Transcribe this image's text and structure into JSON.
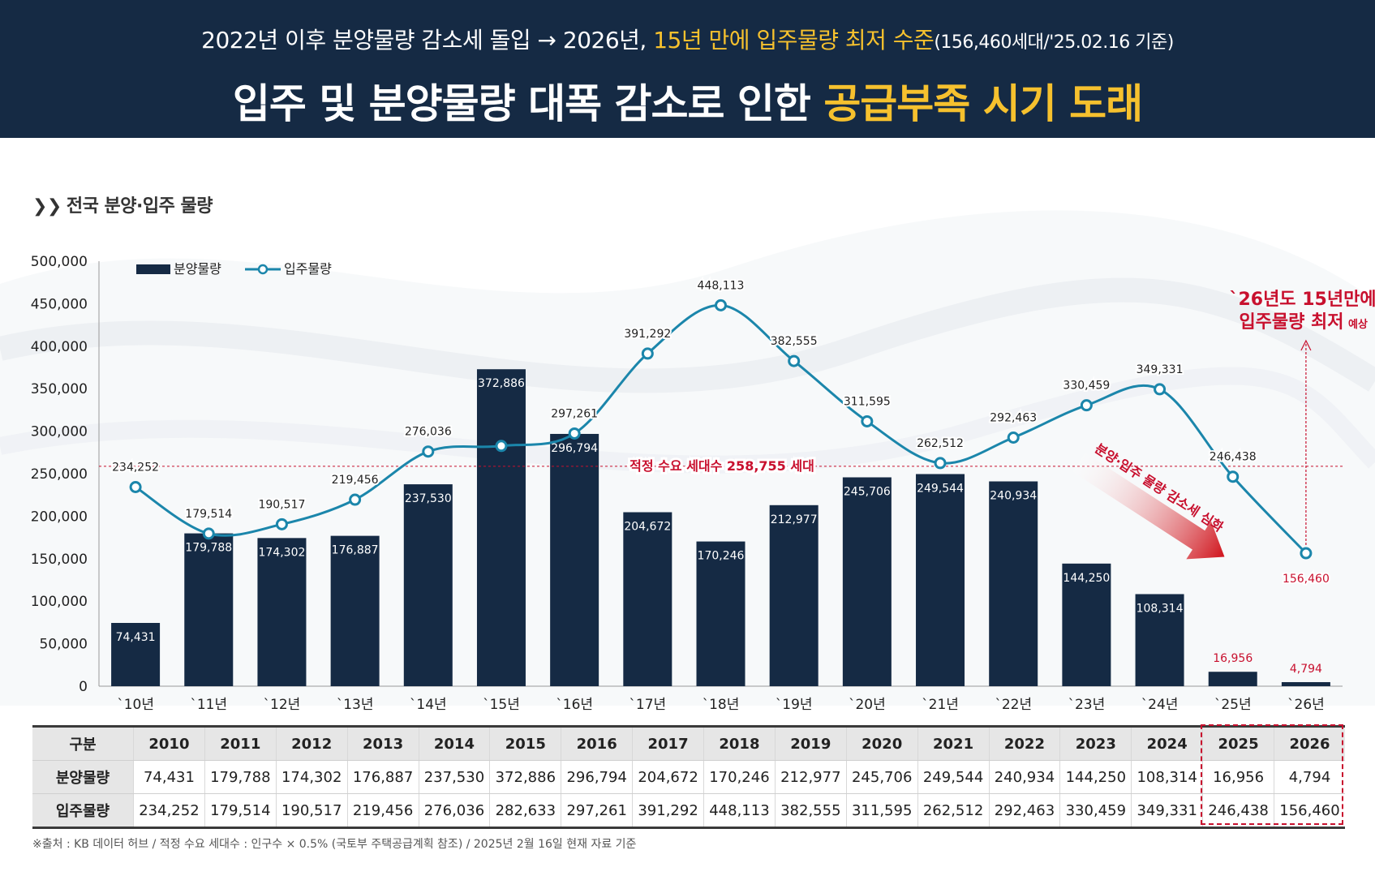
{
  "header": {
    "subtitle_part1": "2022년 이후 분양물량 감소세 돌입 → 2026년, ",
    "subtitle_highlight": "15년 만에 입주물량 최저 수준",
    "subtitle_note": "(156,460세대/'25.02.16 기준)",
    "title_part1": "입주 및 분양물량 대폭 감소로 인한 ",
    "title_highlight": "공급부족 시기 도래"
  },
  "section_title": "전국 분양·입주 물량",
  "colors": {
    "header_bg": "#152a44",
    "highlight": "#f6c12e",
    "bar": "#152a44",
    "line": "#1b86ab",
    "accent_red": "#c8102e"
  },
  "chart_data": {
    "type": "bar",
    "categories": [
      "`10년",
      "`11년",
      "`12년",
      "`13년",
      "`14년",
      "`15년",
      "`16년",
      "`17년",
      "`18년",
      "`19년",
      "`20년",
      "`21년",
      "`22년",
      "`23년",
      "`24년",
      "`25년",
      "`26년"
    ],
    "series": [
      {
        "name": "분양물량",
        "type": "bar",
        "values": [
          74431,
          179788,
          174302,
          176887,
          237530,
          372886,
          296794,
          204672,
          170246,
          212977,
          245706,
          249544,
          240934,
          144250,
          108314,
          16956,
          4794
        ]
      },
      {
        "name": "입주물량",
        "type": "line",
        "values": [
          234252,
          179514,
          190517,
          219456,
          276036,
          282633,
          297261,
          391292,
          448113,
          382555,
          311595,
          262512,
          292463,
          330459,
          349331,
          246438,
          156460
        ]
      }
    ],
    "bar_labels": [
      "74,431",
      "179,788",
      "174,302",
      "176,887",
      "237,530",
      "372,886",
      "296,794",
      "204,672",
      "170,246",
      "212,977",
      "245,706",
      "249,544",
      "240,934",
      "144,250",
      "108,314",
      "16,956",
      "4,794"
    ],
    "line_labels": [
      "234,252",
      "179,514",
      "190,517",
      "219,456",
      "276,036",
      "",
      "297,261",
      "391,292",
      "448,113",
      "382,555",
      "311,595",
      "262,512",
      "292,463",
      "330,459",
      "349,331",
      "246,438",
      "156,460"
    ],
    "y_ticks": [
      "0",
      "50,000",
      "100,000",
      "150,000",
      "200,000",
      "250,000",
      "300,000",
      "350,000",
      "400,000",
      "450,000",
      "500,000"
    ],
    "ylim": [
      0,
      500000
    ],
    "legend_position": "top-left",
    "reference_line": {
      "value": 258755,
      "label": "적정 수요 세대수 258,755 세대"
    },
    "annotation_top_line1": "`26년도 15년만에",
    "annotation_top_line2": "입주물량 최저",
    "annotation_top_small": "예상",
    "annotation_arrow": "분양·입주 물량 감소세 심화"
  },
  "table": {
    "header_label": "구분",
    "years": [
      "2010",
      "2011",
      "2012",
      "2013",
      "2014",
      "2015",
      "2016",
      "2017",
      "2018",
      "2019",
      "2020",
      "2021",
      "2022",
      "2023",
      "2024",
      "2025",
      "2026"
    ],
    "rows": [
      {
        "label": "분양물량",
        "values": [
          "74,431",
          "179,788",
          "174,302",
          "176,887",
          "237,530",
          "372,886",
          "296,794",
          "204,672",
          "170,246",
          "212,977",
          "245,706",
          "249,544",
          "240,934",
          "144,250",
          "108,314",
          "16,956",
          "4,794"
        ]
      },
      {
        "label": "입주물량",
        "values": [
          "234,252",
          "179,514",
          "190,517",
          "219,456",
          "276,036",
          "282,633",
          "297,261",
          "391,292",
          "448,113",
          "382,555",
          "311,595",
          "262,512",
          "292,463",
          "330,459",
          "349,331",
          "246,438",
          "156,460"
        ]
      }
    ]
  },
  "footnote": "※출처 : KB 데이터 허브 / 적정 수요 세대수 : 인구수 × 0.5% (국토부 주택공급계획 참조) / 2025년 2월 16일 현재 자료 기준"
}
